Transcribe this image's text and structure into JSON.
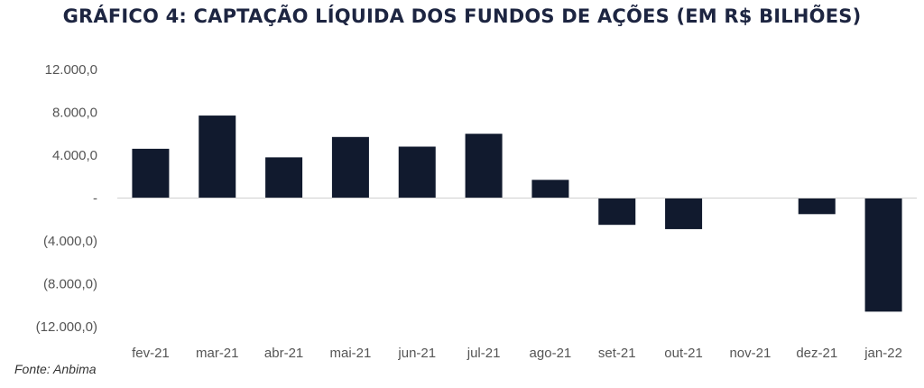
{
  "chart_data": {
    "type": "bar",
    "title": "GRÁFICO 4: CAPTAÇÃO LÍQUIDA DOS FUNDOS DE AÇÕES (EM R$ BILHÕES)",
    "categories": [
      "fev-21",
      "mar-21",
      "abr-21",
      "mai-21",
      "jun-21",
      "jul-21",
      "ago-21",
      "set-21",
      "out-21",
      "nov-21",
      "dez-21",
      "jan-22"
    ],
    "values": [
      4600,
      7700,
      3800,
      5700,
      4800,
      6000,
      1700,
      -2500,
      -2900,
      0,
      -1500,
      -10600
    ],
    "ylim": [
      -12000,
      12000
    ],
    "yticks": [
      12000,
      8000,
      4000,
      0,
      -4000,
      -8000,
      -12000
    ],
    "ytick_labels": [
      "12.000,0",
      "8.000,0",
      "4.000,0",
      "-",
      "(4.000,0)",
      "(8.000,0)",
      "(12.000,0)"
    ],
    "bar_color": "#111a2e",
    "grid": false,
    "legend": "none"
  },
  "source": "Fonte: Anbima"
}
